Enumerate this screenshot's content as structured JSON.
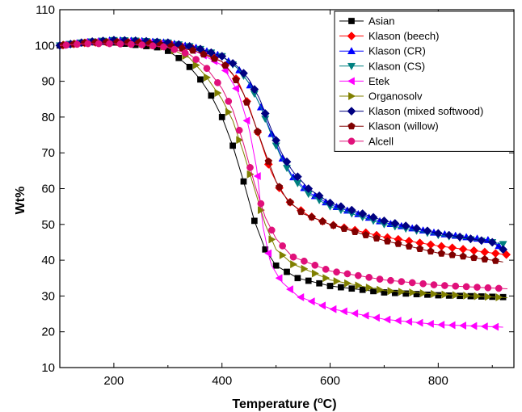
{
  "chart_data": {
    "type": "line",
    "title": "",
    "xlabel": "Temperature (°C)",
    "xlabel_main": "Temperature (",
    "xlabel_sup": "o",
    "xlabel_tail": "C)",
    "ylabel": "Wt%",
    "xlim": [
      100,
      940
    ],
    "ylim": [
      10,
      110
    ],
    "x_ticks": [
      200,
      400,
      600,
      800
    ],
    "y_ticks": [
      10,
      20,
      30,
      40,
      50,
      60,
      70,
      80,
      90,
      100,
      110
    ],
    "grid": false,
    "legend_position": "top-right",
    "series": [
      {
        "name": "Asian",
        "color": "#000000",
        "marker": "square",
        "points": [
          [
            100,
            100
          ],
          [
            130,
            100.5
          ],
          [
            160,
            101
          ],
          [
            190,
            101
          ],
          [
            220,
            100.5
          ],
          [
            250,
            100
          ],
          [
            280,
            99.5
          ],
          [
            300,
            98.5
          ],
          [
            320,
            96.5
          ],
          [
            340,
            94
          ],
          [
            360,
            90.5
          ],
          [
            380,
            86
          ],
          [
            400,
            80
          ],
          [
            420,
            72
          ],
          [
            440,
            62
          ],
          [
            460,
            51
          ],
          [
            480,
            43
          ],
          [
            500,
            38.5
          ],
          [
            540,
            35
          ],
          [
            600,
            32.8
          ],
          [
            700,
            31
          ],
          [
            800,
            30.2
          ],
          [
            920,
            29.7
          ]
        ]
      },
      {
        "name": "Klason (beech)",
        "color": "#ff0000",
        "marker": "diamond",
        "points": [
          [
            100,
            100
          ],
          [
            150,
            100.8
          ],
          [
            200,
            101
          ],
          [
            250,
            101
          ],
          [
            300,
            100.5
          ],
          [
            350,
            99
          ],
          [
            400,
            95.5
          ],
          [
            430,
            90
          ],
          [
            450,
            83
          ],
          [
            470,
            74
          ],
          [
            490,
            65
          ],
          [
            510,
            59
          ],
          [
            530,
            55.5
          ],
          [
            560,
            52.5
          ],
          [
            600,
            50
          ],
          [
            700,
            46.5
          ],
          [
            800,
            44
          ],
          [
            900,
            42
          ],
          [
            930,
            41.5
          ]
        ]
      },
      {
        "name": "Klason (CR)",
        "color": "#0000ff",
        "marker": "triangle-up",
        "points": [
          [
            100,
            100
          ],
          [
            150,
            101
          ],
          [
            200,
            101.5
          ],
          [
            250,
            101.3
          ],
          [
            300,
            100.8
          ],
          [
            350,
            99.5
          ],
          [
            400,
            97
          ],
          [
            430,
            93.5
          ],
          [
            450,
            89.5
          ],
          [
            470,
            83.5
          ],
          [
            490,
            76
          ],
          [
            510,
            69
          ],
          [
            530,
            63.5
          ],
          [
            560,
            59
          ],
          [
            600,
            55.5
          ],
          [
            700,
            50.5
          ],
          [
            800,
            47.5
          ],
          [
            900,
            45.5
          ],
          [
            920,
            43
          ]
        ]
      },
      {
        "name": "Klason (CS)",
        "color": "#008080",
        "marker": "triangle-down",
        "points": [
          [
            100,
            100
          ],
          [
            150,
            101
          ],
          [
            200,
            101.5
          ],
          [
            250,
            101.3
          ],
          [
            300,
            100.8
          ],
          [
            350,
            99.5
          ],
          [
            400,
            97
          ],
          [
            430,
            93.5
          ],
          [
            450,
            89.5
          ],
          [
            470,
            83.5
          ],
          [
            490,
            75.5
          ],
          [
            510,
            68.5
          ],
          [
            530,
            63
          ],
          [
            560,
            58.5
          ],
          [
            600,
            55
          ],
          [
            700,
            50
          ],
          [
            800,
            47
          ],
          [
            900,
            45
          ],
          [
            920,
            44.5
          ]
        ]
      },
      {
        "name": "Etek",
        "color": "#ff00ff",
        "marker": "triangle-left",
        "points": [
          [
            100,
            100
          ],
          [
            150,
            101
          ],
          [
            200,
            101
          ],
          [
            250,
            100.8
          ],
          [
            300,
            100
          ],
          [
            350,
            98.5
          ],
          [
            400,
            94.5
          ],
          [
            430,
            87
          ],
          [
            450,
            77
          ],
          [
            465,
            65
          ],
          [
            475,
            50
          ],
          [
            490,
            39
          ],
          [
            510,
            34
          ],
          [
            540,
            30
          ],
          [
            600,
            26.5
          ],
          [
            700,
            23.5
          ],
          [
            800,
            22
          ],
          [
            920,
            21.3
          ]
        ]
      },
      {
        "name": "Organosolv",
        "color": "#808000",
        "marker": "triangle-right",
        "points": [
          [
            100,
            100
          ],
          [
            150,
            100.8
          ],
          [
            200,
            101
          ],
          [
            250,
            100.5
          ],
          [
            300,
            99.5
          ],
          [
            340,
            96.5
          ],
          [
            370,
            91.5
          ],
          [
            400,
            85
          ],
          [
            420,
            79
          ],
          [
            440,
            70
          ],
          [
            460,
            60
          ],
          [
            480,
            50
          ],
          [
            500,
            43
          ],
          [
            530,
            39
          ],
          [
            600,
            34.5
          ],
          [
            700,
            31.5
          ],
          [
            800,
            30.5
          ],
          [
            930,
            29.5
          ]
        ]
      },
      {
        "name": "Klason (mixed softwood)",
        "color": "#000080",
        "marker": "diamond",
        "points": [
          [
            100,
            100
          ],
          [
            150,
            101
          ],
          [
            200,
            101.5
          ],
          [
            250,
            101.3
          ],
          [
            300,
            100.8
          ],
          [
            350,
            99.5
          ],
          [
            400,
            97
          ],
          [
            430,
            94
          ],
          [
            450,
            90.5
          ],
          [
            470,
            85
          ],
          [
            490,
            77
          ],
          [
            510,
            70
          ],
          [
            530,
            65
          ],
          [
            560,
            60
          ],
          [
            600,
            56
          ],
          [
            700,
            51
          ],
          [
            800,
            47.5
          ],
          [
            900,
            45
          ],
          [
            920,
            43
          ]
        ]
      },
      {
        "name": "Klason (willow)",
        "color": "#800000",
        "marker": "pentagon",
        "points": [
          [
            100,
            100
          ],
          [
            150,
            100.8
          ],
          [
            200,
            101
          ],
          [
            250,
            100.8
          ],
          [
            300,
            100
          ],
          [
            350,
            98.5
          ],
          [
            400,
            95.5
          ],
          [
            420,
            92
          ],
          [
            440,
            86.5
          ],
          [
            460,
            78.5
          ],
          [
            480,
            70
          ],
          [
            500,
            62
          ],
          [
            520,
            57
          ],
          [
            550,
            53
          ],
          [
            600,
            50
          ],
          [
            700,
            45.5
          ],
          [
            800,
            42
          ],
          [
            900,
            40
          ],
          [
            920,
            39.5
          ]
        ]
      },
      {
        "name": "Alcell",
        "color": "#e0107a",
        "marker": "circle",
        "points": [
          [
            100,
            100
          ],
          [
            150,
            100.5
          ],
          [
            200,
            100.5
          ],
          [
            250,
            100.2
          ],
          [
            300,
            99.5
          ],
          [
            340,
            97.5
          ],
          [
            370,
            94
          ],
          [
            400,
            88
          ],
          [
            420,
            82
          ],
          [
            440,
            72.5
          ],
          [
            460,
            61.5
          ],
          [
            480,
            52
          ],
          [
            500,
            46
          ],
          [
            530,
            41
          ],
          [
            600,
            37
          ],
          [
            700,
            34.5
          ],
          [
            800,
            33
          ],
          [
            930,
            32
          ]
        ]
      }
    ]
  }
}
